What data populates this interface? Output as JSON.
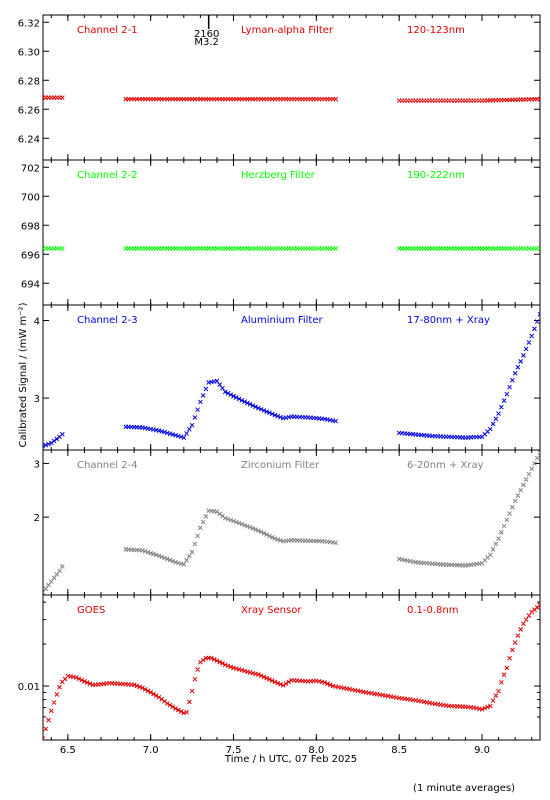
{
  "chart_data": {
    "type": "scatter",
    "x_axis": {
      "label": "Time / h UTC, 07 Feb 2025",
      "range": [
        6.35,
        9.35
      ],
      "ticks": [
        6.5,
        7.0,
        7.5,
        8.0,
        8.5,
        9.0
      ],
      "tick_labels": [
        "6.5",
        "7.0",
        "7.5",
        "8.0",
        "8.5",
        "9.0"
      ]
    },
    "shared_ylabel": "Calibrated Signal / (mW m⁻²)",
    "footnote": "(1 minute averages)",
    "flare_marker": {
      "x": 7.35,
      "label1": "2160",
      "label2": "M3.2"
    },
    "panels": [
      {
        "name": "Channel 2-1",
        "filter": "Lyman-alpha Filter",
        "band": "120-123nm",
        "color": "#e00000",
        "scale": "linear",
        "ylim": [
          6.225,
          6.325
        ],
        "ticks": [
          6.24,
          6.26,
          6.28,
          6.3,
          6.32
        ],
        "tick_labels": [
          "6.24",
          "6.26",
          "6.28",
          "6.30",
          "6.32"
        ],
        "segments": [
          {
            "x": [
              6.35,
              6.48
            ],
            "y": [
              6.268,
              6.268
            ]
          },
          {
            "x": [
              6.85,
              7.5,
              8.12
            ],
            "y": [
              6.267,
              6.267,
              6.267
            ]
          },
          {
            "x": [
              8.5,
              9.0,
              9.35
            ],
            "y": [
              6.266,
              6.266,
              6.267
            ]
          }
        ]
      },
      {
        "name": "Channel 2-2",
        "filter": "Herzberg Filter",
        "band": "190-222nm",
        "color": "#00ff00",
        "scale": "linear",
        "ylim": [
          692.5,
          702.5
        ],
        "ticks": [
          694,
          696,
          698,
          700,
          702
        ],
        "tick_labels": [
          "694",
          "696",
          "698",
          "700",
          "702"
        ],
        "segments": [
          {
            "x": [
              6.35,
              6.48
            ],
            "y": [
              696.4,
              696.4
            ]
          },
          {
            "x": [
              6.85,
              8.12
            ],
            "y": [
              696.4,
              696.4
            ]
          },
          {
            "x": [
              8.5,
              9.35
            ],
            "y": [
              696.4,
              696.4
            ]
          }
        ]
      },
      {
        "name": "Channel 2-3",
        "filter": "Aluminium Filter",
        "band": "17-80nm + Xray",
        "color": "#0000e0",
        "scale": "linear",
        "ylim": [
          2.33,
          4.2
        ],
        "ticks": [
          3,
          4
        ],
        "tick_labels": [
          "3",
          "4"
        ],
        "segments": [
          {
            "x": [
              6.35,
              6.4,
              6.45,
              6.48
            ],
            "y": [
              2.38,
              2.42,
              2.5,
              2.56
            ]
          },
          {
            "x": [
              6.85,
              6.95,
              7.05,
              7.15,
              7.2,
              7.25,
              7.3,
              7.35,
              7.4,
              7.45,
              7.55,
              7.65,
              7.75,
              7.8,
              7.85,
              7.95,
              8.05,
              8.12
            ],
            "y": [
              2.63,
              2.62,
              2.58,
              2.52,
              2.49,
              2.65,
              2.95,
              3.2,
              3.22,
              3.08,
              2.97,
              2.87,
              2.78,
              2.74,
              2.76,
              2.75,
              2.73,
              2.7
            ]
          },
          {
            "x": [
              8.5,
              8.7,
              8.9,
              9.0,
              9.05,
              9.1,
              9.15,
              9.2,
              9.25,
              9.3,
              9.35
            ],
            "y": [
              2.55,
              2.51,
              2.49,
              2.5,
              2.6,
              2.8,
              3.05,
              3.32,
              3.55,
              3.8,
              4.08
            ]
          }
        ]
      },
      {
        "name": "Channel 2-4",
        "filter": "Zirconium Filter",
        "band": "6-20nm + Xray",
        "color": "#808080",
        "scale": "linear",
        "ylim": [
          0.55,
          3.25
        ],
        "ticks": [
          2,
          3
        ],
        "tick_labels": [
          "2",
          "3"
        ],
        "segments": [
          {
            "x": [
              6.35,
              6.4,
              6.45,
              6.48
            ],
            "y": [
              0.6,
              0.8,
              1.0,
              1.15
            ]
          },
          {
            "x": [
              6.85,
              6.95,
              7.05,
              7.15,
              7.2,
              7.25,
              7.3,
              7.35,
              7.4,
              7.45,
              7.55,
              7.65,
              7.75,
              7.8,
              7.85,
              7.95,
              8.05,
              8.12
            ],
            "y": [
              1.4,
              1.38,
              1.28,
              1.16,
              1.12,
              1.35,
              1.8,
              2.12,
              2.1,
              1.98,
              1.87,
              1.75,
              1.6,
              1.55,
              1.57,
              1.56,
              1.55,
              1.52
            ]
          },
          {
            "x": [
              8.5,
              8.6,
              8.75,
              8.9,
              9.0,
              9.05,
              9.1,
              9.15,
              9.2,
              9.25,
              9.3,
              9.35
            ],
            "y": [
              1.22,
              1.16,
              1.12,
              1.1,
              1.14,
              1.3,
              1.6,
              1.95,
              2.3,
              2.6,
              2.9,
              3.2
            ]
          }
        ]
      },
      {
        "name": "GOES",
        "filter": "Xray Sensor",
        "band": "0.1-0.8nm",
        "color": "#e00000",
        "scale": "log",
        "ylim": [
          0.0041,
          0.045
        ],
        "ticks": [
          0.01
        ],
        "tick_labels": [
          "0.01"
        ],
        "minor_ticks": [
          0.006,
          0.007,
          0.008,
          0.009,
          0.02,
          0.03,
          0.04
        ],
        "segments": [
          {
            "x": [
              6.35,
              6.38,
              6.42,
              6.46,
              6.5,
              6.55,
              6.6,
              6.65,
              6.7,
              6.75,
              6.8,
              6.85,
              6.9,
              6.95,
              7.0,
              7.05,
              7.1,
              7.15,
              7.2,
              7.22,
              7.25,
              7.28,
              7.3,
              7.33,
              7.36,
              7.4,
              7.45,
              7.5,
              7.55,
              7.6,
              7.65,
              7.7,
              7.75,
              7.8,
              7.85,
              7.9,
              7.95,
              8.0,
              8.05,
              8.1,
              8.2,
              8.3,
              8.4,
              8.5,
              8.6,
              8.7,
              8.8,
              8.9,
              8.95,
              9.0,
              9.05,
              9.1,
              9.15,
              9.2,
              9.25,
              9.3,
              9.35
            ],
            "y": [
              0.0042,
              0.0055,
              0.0078,
              0.0105,
              0.0118,
              0.0115,
              0.0108,
              0.0102,
              0.0103,
              0.0105,
              0.0104,
              0.0103,
              0.0102,
              0.0097,
              0.009,
              0.0083,
              0.0075,
              0.0069,
              0.0064,
              0.0065,
              0.0092,
              0.0128,
              0.0148,
              0.0158,
              0.016,
              0.0152,
              0.0142,
              0.0135,
              0.013,
              0.0125,
              0.0121,
              0.0114,
              0.0107,
              0.0101,
              0.011,
              0.0109,
              0.0108,
              0.0109,
              0.0106,
              0.01,
              0.0095,
              0.009,
              0.0086,
              0.0082,
              0.0079,
              0.0075,
              0.0072,
              0.0071,
              0.007,
              0.0068,
              0.0072,
              0.0092,
              0.0135,
              0.0205,
              0.028,
              0.034,
              0.038
            ]
          }
        ]
      }
    ]
  }
}
